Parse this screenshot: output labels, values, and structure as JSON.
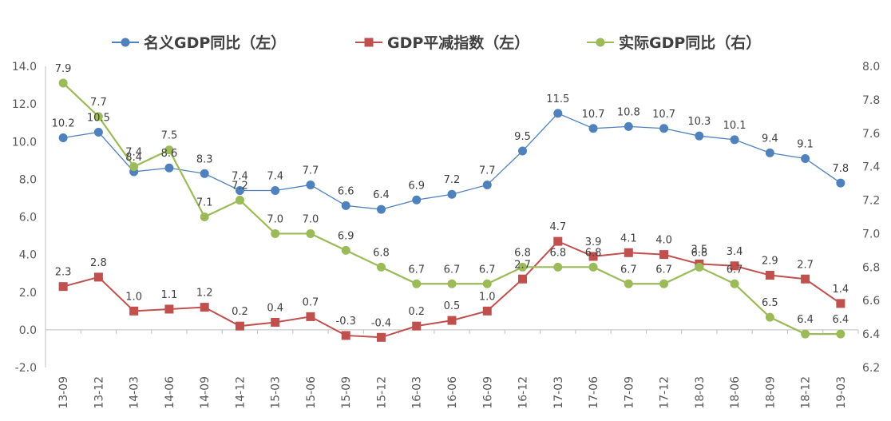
{
  "chart_data": {
    "type": "line",
    "categories": [
      "13-09",
      "13-12",
      "14-03",
      "14-06",
      "14-09",
      "14-12",
      "15-03",
      "15-06",
      "15-09",
      "15-12",
      "16-03",
      "16-06",
      "16-09",
      "16-12",
      "17-03",
      "17-06",
      "17-09",
      "17-12",
      "18-03",
      "18-06",
      "18-09",
      "18-12",
      "19-03"
    ],
    "series": [
      {
        "name": "名义GDP同比（左）",
        "axis": "left",
        "color": "#4F81BD",
        "marker": "circle",
        "values": [
          10.2,
          10.5,
          8.4,
          8.6,
          8.3,
          7.4,
          7.4,
          7.7,
          6.6,
          6.4,
          6.9,
          7.2,
          7.7,
          9.5,
          11.5,
          10.7,
          10.8,
          10.7,
          10.3,
          10.1,
          9.4,
          9.1,
          7.8
        ],
        "labels": [
          "10.2",
          "10.5",
          "8.4",
          "8.6",
          "8.3",
          "7.4",
          "7.4",
          "7.7",
          "6.6",
          "6.4",
          "6.9",
          "7.2",
          "7.7",
          "9.5",
          "11.5",
          "10.7",
          "10.8",
          "10.7",
          "10.3",
          "10.1",
          "9.4",
          "9.1",
          "7.8"
        ]
      },
      {
        "name": "GDP平减指数（左）",
        "axis": "left",
        "color": "#C0504D",
        "marker": "square",
        "values": [
          2.3,
          2.8,
          1.0,
          1.1,
          1.2,
          0.2,
          0.4,
          0.7,
          -0.3,
          -0.4,
          0.2,
          0.5,
          1.0,
          2.7,
          4.7,
          3.9,
          4.1,
          4.0,
          3.5,
          3.4,
          2.9,
          2.7,
          1.4
        ],
        "labels": [
          "2.3",
          "2.8",
          "1.0",
          "1.1",
          "1.2",
          "0.2",
          "0.4",
          "0.7",
          "-0.3",
          "-0.4",
          "0.2",
          "0.5",
          "1.0",
          "2.7",
          "4.7",
          "3.9",
          "4.1",
          "4.0",
          "3.5",
          "3.4",
          "2.9",
          "2.7",
          "1.4"
        ]
      },
      {
        "name": "实际GDP同比（右）",
        "axis": "right",
        "color": "#9BBB59",
        "marker": "circle",
        "values": [
          7.9,
          7.7,
          7.4,
          7.5,
          7.1,
          7.2,
          7.0,
          7.0,
          6.9,
          6.8,
          6.7,
          6.7,
          6.7,
          6.8,
          6.8,
          6.8,
          6.7,
          6.7,
          6.8,
          6.7,
          6.5,
          6.4,
          6.4
        ],
        "labels": [
          "7.9",
          "7.7",
          "7.4",
          "7.5",
          "7.1",
          "7.2",
          "7.0",
          "7.0",
          "6.9",
          "6.8",
          "6.7",
          "6.7",
          "6.7",
          "6.8",
          "6.8",
          "6.8",
          "6.7",
          "6.7",
          "6.8",
          "6.7",
          "6.5",
          "6.4",
          "6.4"
        ]
      }
    ],
    "yleft": {
      "min": -2.0,
      "max": 14.0,
      "step": 2.0,
      "tick_labels": [
        "-2.0",
        "0.0",
        "2.0",
        "4.0",
        "6.0",
        "8.0",
        "10.0",
        "12.0",
        "14.0"
      ]
    },
    "yright": {
      "min": 6.2,
      "max": 8.0,
      "step": 0.2,
      "tick_labels": [
        "6.2",
        "6.4",
        "6.6",
        "6.8",
        "7.0",
        "7.2",
        "7.4",
        "7.6",
        "7.8",
        "8.0"
      ]
    },
    "grid": false,
    "legend": "top"
  }
}
